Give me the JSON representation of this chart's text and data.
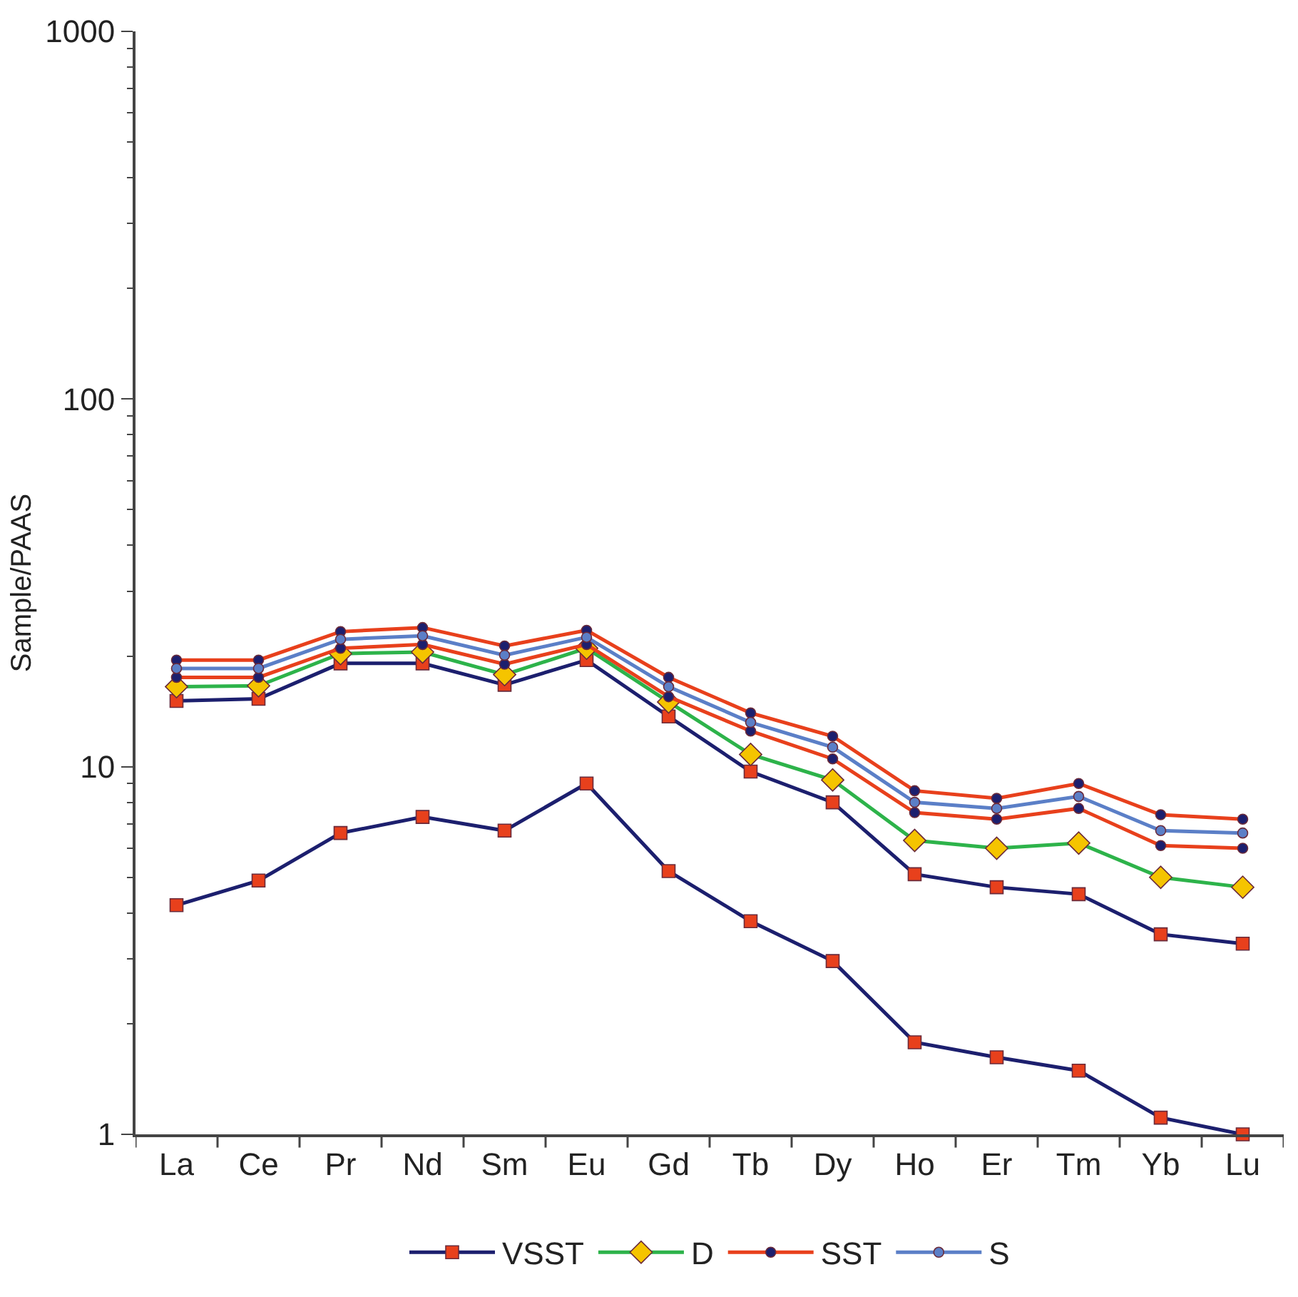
{
  "chart_data": {
    "type": "line",
    "ylabel": "Sample/PAAS",
    "log": "y",
    "ylim": [
      1,
      1000
    ],
    "yticks": [
      1,
      10,
      100,
      1000
    ],
    "legend": "bottom",
    "line_style": "solid",
    "categories": [
      "La",
      "Ce",
      "Pr",
      "Nd",
      "Sm",
      "Eu",
      "Gd",
      "Tb",
      "Dy",
      "Ho",
      "Er",
      "Tm",
      "Yb",
      "Lu"
    ],
    "series": [
      {
        "name": "VSST",
        "color": "#1c1f6e",
        "marker": "square",
        "colors": [
          "#e8401c",
          "#e8401c",
          "#e8401c",
          "#e8401c",
          "#e8401c",
          "#e8401c",
          "#e8401c",
          "#e8401c",
          "#e8401c",
          "#e8401c",
          "#e8401c",
          "#e8401c",
          "#e8401c",
          "#e8401c"
        ],
        "values": [
          4.2,
          4.9,
          6.6,
          7.3,
          6.7,
          9.0,
          5.2,
          3.8,
          2.96,
          1.78,
          1.62,
          1.49,
          1.11,
          1.0
        ]
      },
      {
        "color": "#1c1f6e",
        "marker": "square",
        "colors": [
          "#e8401c",
          "#e8401c",
          "#e8401c",
          "#e8401c",
          "#e8401c",
          "#e8401c",
          "#e8401c",
          "#e8401c",
          "#e8401c",
          "#e8401c",
          "#e8401c",
          "#e8401c",
          "#e8401c",
          "#e8401c"
        ],
        "values": [
          15.1,
          15.3,
          19.1,
          19.1,
          16.7,
          19.5,
          13.7,
          9.7,
          8.0,
          5.1,
          4.7,
          4.5,
          3.5,
          3.3
        ]
      },
      {
        "name": "D",
        "color": "#2db34a",
        "marker": "diamond",
        "colors": [
          "#f5c400",
          "#f5c400",
          "#f5c400",
          "#f5c400",
          "#f5c400",
          "#f5c400",
          "#f5c400",
          "#f5c400",
          "#f5c400",
          "#f5c400",
          "#f5c400",
          "#f5c400",
          "#f5c400",
          "#f5c400"
        ],
        "values": [
          16.5,
          16.6,
          20.3,
          20.5,
          17.8,
          21.0,
          15.0,
          10.8,
          9.2,
          6.3,
          6.0,
          6.2,
          5.0,
          4.7
        ]
      },
      {
        "name": "SST",
        "color": "#e8401c",
        "marker": "circle",
        "colors": [
          "#1c1f6e",
          "#1c1f6e",
          "#1c1f6e",
          "#1c1f6e",
          "#1c1f6e",
          "#1c1f6e",
          "#1c1f6e",
          "#1c1f6e",
          "#1c1f6e",
          "#1c1f6e",
          "#1c1f6e",
          "#1c1f6e",
          "#1c1f6e",
          "#1c1f6e"
        ],
        "values": [
          17.5,
          17.5,
          21.0,
          21.5,
          19.0,
          21.5,
          15.5,
          12.5,
          10.5,
          7.5,
          7.2,
          7.7,
          6.1,
          6.0
        ]
      },
      {
        "color": "#e8401c",
        "marker": "circle",
        "colors": [
          "#1c1f6e",
          "#1c1f6e",
          "#1c1f6e",
          "#1c1f6e",
          "#1c1f6e",
          "#1c1f6e",
          "#1c1f6e",
          "#1c1f6e",
          "#1c1f6e",
          "#1c1f6e",
          "#1c1f6e",
          "#1c1f6e",
          "#1c1f6e",
          "#1c1f6e"
        ],
        "values": [
          19.5,
          19.5,
          23.3,
          23.9,
          21.3,
          23.5,
          17.5,
          14.0,
          12.1,
          8.6,
          8.2,
          9.0,
          7.4,
          7.2
        ]
      },
      {
        "name": "S",
        "color": "#5b7fc7",
        "marker": "circle",
        "colors": [
          "#5b7fc7",
          "#5b7fc7",
          "#5b7fc7",
          "#5b7fc7",
          "#5b7fc7",
          "#5b7fc7",
          "#5b7fc7",
          "#5b7fc7",
          "#5b7fc7",
          "#5b7fc7",
          "#5b7fc7",
          "#5b7fc7",
          "#5b7fc7",
          "#5b7fc7"
        ],
        "values": [
          18.5,
          18.5,
          22.2,
          22.7,
          20.1,
          22.5,
          16.5,
          13.2,
          11.3,
          8.0,
          7.7,
          8.3,
          6.7,
          6.6
        ]
      }
    ]
  }
}
